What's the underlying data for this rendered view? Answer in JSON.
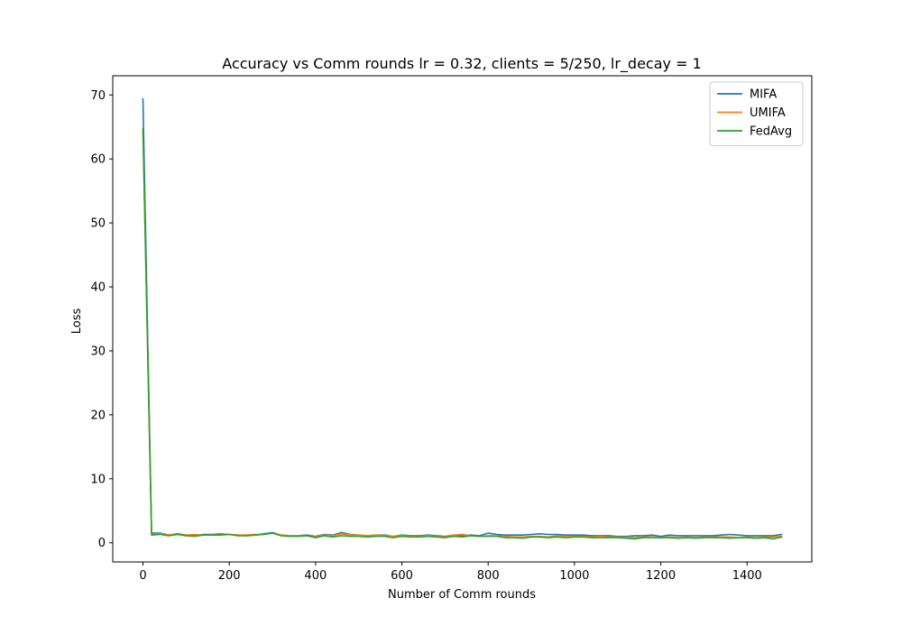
{
  "chart_data": {
    "type": "line",
    "title": "Accuracy vs Comm rounds lr = 0.32, clients = 5/250, lr_decay = 1",
    "xlabel": "Number of Comm rounds",
    "ylabel": "Loss",
    "xlim": [
      -70,
      1550
    ],
    "ylim": [
      -3,
      73
    ],
    "xticks": [
      0,
      200,
      400,
      600,
      800,
      1000,
      1200,
      1400
    ],
    "yticks": [
      0,
      10,
      20,
      30,
      40,
      50,
      60,
      70
    ],
    "grid": false,
    "legend_position": "top-right",
    "x": [
      0,
      20,
      40,
      60,
      80,
      100,
      120,
      140,
      160,
      180,
      200,
      220,
      240,
      260,
      280,
      300,
      320,
      340,
      360,
      380,
      400,
      420,
      440,
      460,
      480,
      500,
      520,
      540,
      560,
      580,
      600,
      620,
      640,
      660,
      680,
      700,
      720,
      740,
      760,
      780,
      800,
      820,
      840,
      860,
      880,
      900,
      920,
      940,
      960,
      980,
      1000,
      1020,
      1040,
      1060,
      1080,
      1100,
      1120,
      1140,
      1160,
      1180,
      1200,
      1220,
      1240,
      1260,
      1280,
      1300,
      1320,
      1340,
      1360,
      1380,
      1400,
      1420,
      1440,
      1460,
      1480
    ],
    "series": [
      {
        "name": "MIFA",
        "color": "#1f77b4",
        "values": [
          69.4,
          1.5,
          1.5,
          1.2,
          1.4,
          1.2,
          1.1,
          1.3,
          1.3,
          1.4,
          1.3,
          1.2,
          1.1,
          1.2,
          1.4,
          1.6,
          1.2,
          1.1,
          1.1,
          1.2,
          1.0,
          1.3,
          1.2,
          1.6,
          1.3,
          1.2,
          1.1,
          1.2,
          1.2,
          1.0,
          1.2,
          1.1,
          1.1,
          1.2,
          1.1,
          1.0,
          1.2,
          1.1,
          1.2,
          1.1,
          1.5,
          1.3,
          1.2,
          1.2,
          1.2,
          1.3,
          1.4,
          1.3,
          1.3,
          1.2,
          1.2,
          1.2,
          1.1,
          1.1,
          1.1,
          1.0,
          1.0,
          1.1,
          1.1,
          1.2,
          1.0,
          1.2,
          1.1,
          1.1,
          1.1,
          1.1,
          1.1,
          1.2,
          1.3,
          1.2,
          1.1,
          1.1,
          1.1,
          1.1,
          1.3
        ]
      },
      {
        "name": "UMIFA",
        "color": "#ff7f0e",
        "values": [
          64.6,
          1.3,
          1.4,
          1.2,
          1.3,
          1.2,
          1.3,
          1.2,
          1.2,
          1.3,
          1.3,
          1.2,
          1.2,
          1.3,
          1.3,
          1.5,
          1.2,
          1.1,
          1.1,
          1.1,
          0.9,
          1.2,
          1.1,
          1.4,
          1.2,
          1.2,
          1.1,
          1.2,
          1.1,
          1.0,
          1.1,
          1.0,
          1.0,
          1.1,
          1.0,
          0.9,
          1.2,
          1.3,
          1.1,
          1.0,
          1.1,
          1.1,
          1.0,
          0.9,
          0.9,
          1.0,
          1.0,
          0.9,
          1.1,
          1.0,
          1.0,
          1.0,
          0.9,
          1.0,
          0.9,
          0.9,
          0.8,
          0.8,
          0.9,
          0.9,
          0.8,
          0.9,
          0.8,
          0.9,
          0.8,
          0.9,
          0.9,
          0.9,
          0.9,
          0.8,
          0.9,
          0.8,
          0.9,
          0.9,
          1.0
        ]
      },
      {
        "name": "FedAvg",
        "color": "#2ca02c",
        "values": [
          64.7,
          1.2,
          1.3,
          1.1,
          1.3,
          1.1,
          1.0,
          1.2,
          1.2,
          1.2,
          1.3,
          1.1,
          1.1,
          1.2,
          1.3,
          1.5,
          1.1,
          1.0,
          1.0,
          1.1,
          0.8,
          1.1,
          0.9,
          1.1,
          1.0,
          1.0,
          0.9,
          1.0,
          1.0,
          0.8,
          1.0,
          0.9,
          0.9,
          1.0,
          0.9,
          0.8,
          1.0,
          0.9,
          1.1,
          1.0,
          1.0,
          1.0,
          0.8,
          0.8,
          0.7,
          0.9,
          0.9,
          0.8,
          0.9,
          0.8,
          0.9,
          0.9,
          0.8,
          0.8,
          0.8,
          0.8,
          0.7,
          0.6,
          0.8,
          0.8,
          0.8,
          0.8,
          0.7,
          0.8,
          0.7,
          0.8,
          0.8,
          0.8,
          0.7,
          0.8,
          0.8,
          0.7,
          0.8,
          0.6,
          0.9
        ]
      }
    ]
  }
}
